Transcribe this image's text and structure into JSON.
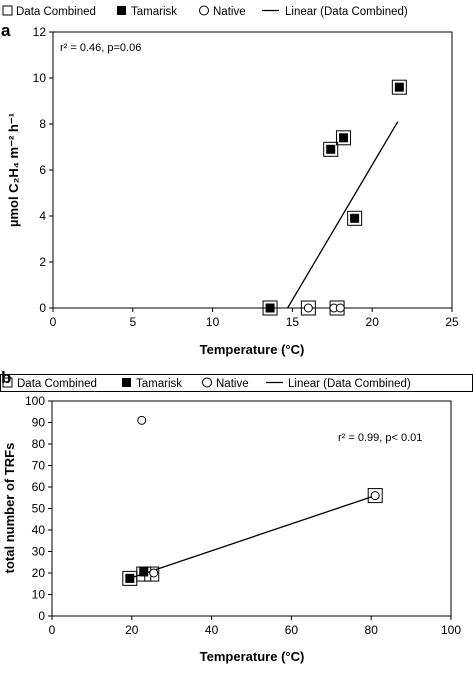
{
  "chart_data": [
    {
      "panel_label": "a",
      "type": "scatter",
      "legend": [
        {
          "label": "Data Combined",
          "marker": "open-square"
        },
        {
          "label": "Tamarisk",
          "marker": "filled-square"
        },
        {
          "label": "Native",
          "marker": "open-circle"
        },
        {
          "label": "Linear (Data Combined)",
          "marker": "line"
        }
      ],
      "legend_placement": "top",
      "annotation": "r² = 0.46, p=0.06",
      "xlabel": "Temperature (°C)",
      "ylabel": "µmol C₂H₄ m⁻² h⁻¹",
      "xlim": [
        0,
        25
      ],
      "ylim": [
        0,
        12
      ],
      "xticks": [
        0,
        5,
        10,
        15,
        20,
        25
      ],
      "yticks": [
        0,
        2,
        4,
        6,
        8,
        10,
        12
      ],
      "grid": false,
      "series": [
        {
          "name": "Data Combined",
          "x": [
            13.6,
            16.0,
            17.4,
            17.8,
            18.2,
            18.9,
            21.7
          ],
          "y": [
            0.0,
            0.0,
            6.9,
            0.0,
            7.4,
            3.9,
            9.6
          ]
        },
        {
          "name": "Tamarisk",
          "x": [
            13.6,
            17.4,
            18.2,
            18.9,
            21.7
          ],
          "y": [
            0.0,
            6.9,
            7.4,
            3.9,
            9.6
          ]
        },
        {
          "name": "Native",
          "x": [
            16.0,
            17.6,
            18.0
          ],
          "y": [
            0.0,
            0.0,
            0.0
          ]
        }
      ],
      "trendline": {
        "name": "Linear (Data Combined)",
        "x": [
          14.7,
          21.6
        ],
        "y": [
          0.0,
          8.1
        ]
      }
    },
    {
      "panel_label": "b",
      "type": "scatter",
      "legend": [
        {
          "label": "Data Combined",
          "marker": "open-square"
        },
        {
          "label": "Tamarisk",
          "marker": "filled-square"
        },
        {
          "label": "Native",
          "marker": "open-circle"
        },
        {
          "label": "Linear (Data Combined)",
          "marker": "line"
        }
      ],
      "legend_placement": "top",
      "annotation": "r² = 0.99, p< 0.01",
      "xlabel": "Temperature (°C)",
      "ylabel": "total number of TRFs",
      "xlim": [
        0,
        100
      ],
      "ylim": [
        0,
        100
      ],
      "xticks": [
        0,
        20,
        40,
        60,
        80,
        100
      ],
      "yticks": [
        0,
        10,
        20,
        30,
        40,
        50,
        60,
        70,
        80,
        90,
        100
      ],
      "grid": false,
      "series": [
        {
          "name": "Data Combined",
          "x": [
            19.5,
            23.0,
            25.0,
            81.0
          ],
          "y": [
            17.5,
            19.5,
            19.5,
            56.0
          ]
        },
        {
          "name": "Tamarisk",
          "x": [
            19.5,
            23.0
          ],
          "y": [
            17.5,
            20.5
          ]
        },
        {
          "name": "Native",
          "x": [
            22.5,
            25.5,
            81.0
          ],
          "y": [
            91.0,
            20.0,
            56.0
          ]
        }
      ],
      "trendline": {
        "name": "Linear (Data Combined)",
        "x": [
          19.5,
          81.0
        ],
        "y": [
          17.5,
          56.0
        ]
      }
    }
  ]
}
